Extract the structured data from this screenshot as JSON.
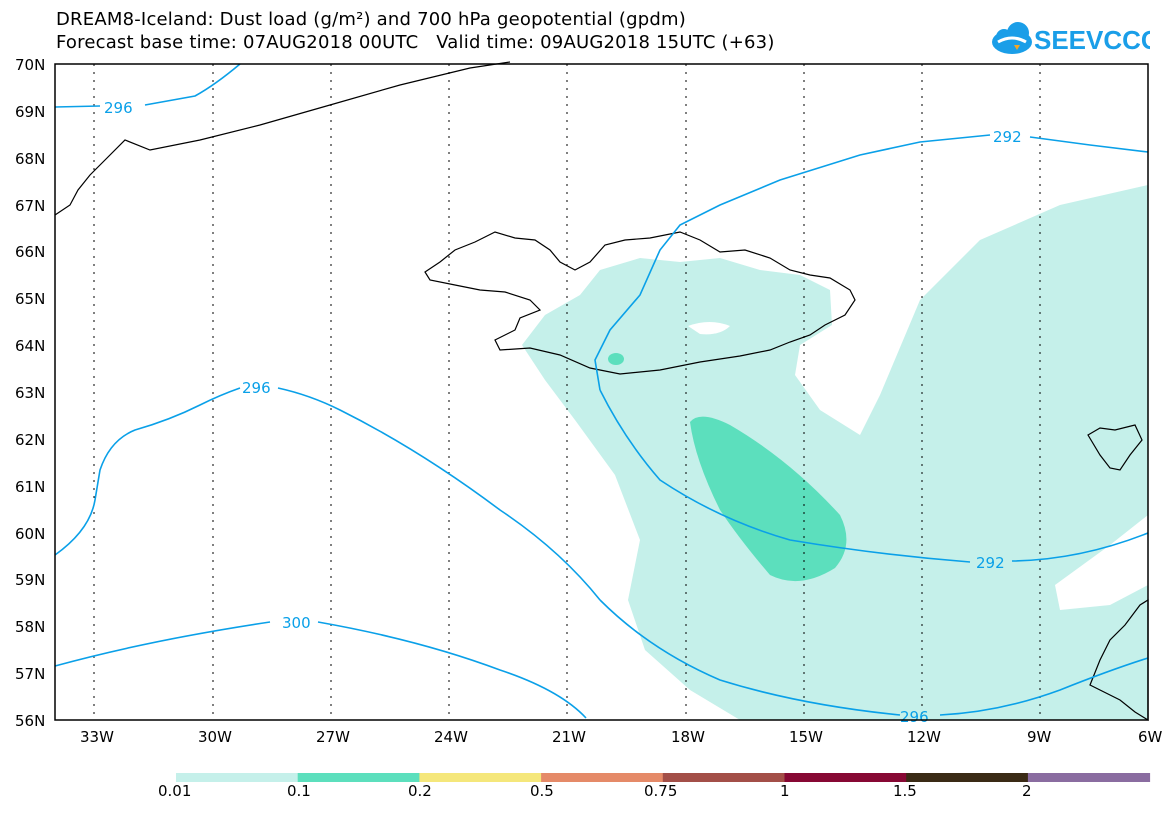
{
  "header": {
    "title_line1": "DREAM8-Iceland: Dust load (g/m²) and 700 hPa geopotential (gpdm)",
    "title_line2": "Forecast base time: 07AUG2018 00UTC   Valid time: 09AUG2018 15UTC (+63)"
  },
  "logo": {
    "text": "SEEVCCC",
    "color": "#1a9ee8",
    "icon": "cloud-icon"
  },
  "map": {
    "lat_labels": [
      "70N",
      "69N",
      "68N",
      "67N",
      "66N",
      "65N",
      "64N",
      "63N",
      "62N",
      "61N",
      "60N",
      "59N",
      "58N",
      "57N",
      "56N"
    ],
    "lon_labels": [
      "33W",
      "30W",
      "27W",
      "24W",
      "21W",
      "18W",
      "15W",
      "12W",
      "9W",
      "6W"
    ],
    "contours": [
      {
        "value": "296",
        "name": "contour-296-north"
      },
      {
        "value": "292",
        "name": "contour-292-north"
      },
      {
        "value": "296",
        "name": "contour-296-west"
      },
      {
        "value": "292",
        "name": "contour-292-south"
      },
      {
        "value": "300",
        "name": "contour-300"
      },
      {
        "value": "296",
        "name": "contour-296-south"
      }
    ],
    "colors": {
      "contour": "#0aa0e8",
      "dust_low": "#c5f0ea",
      "dust_mid": "#5cdfbd"
    }
  },
  "colorbar": {
    "labels": [
      "0.01",
      "0.1",
      "0.2",
      "0.5",
      "0.75",
      "1",
      "1.5",
      "2"
    ],
    "colors": [
      "#c5f0ea",
      "#5cdfbd",
      "#f5e77b",
      "#e58a68",
      "#a34f48",
      "#870834",
      "#3a2a15",
      "#8a6ca0"
    ]
  }
}
